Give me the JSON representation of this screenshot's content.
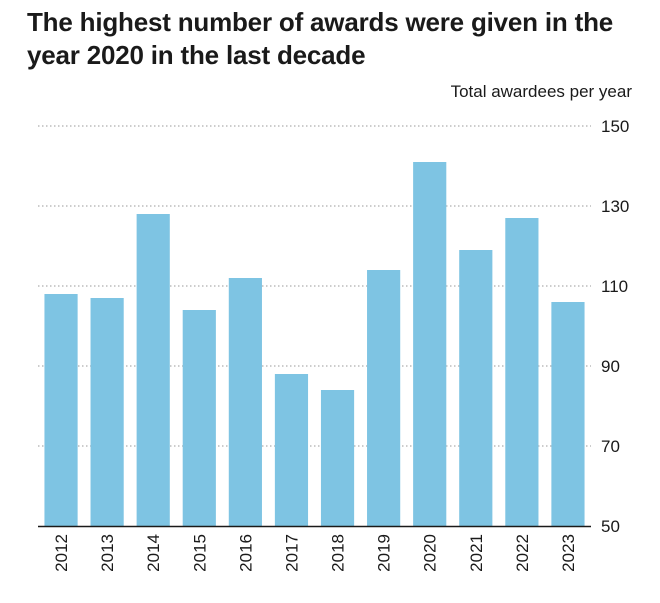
{
  "chart_data": {
    "type": "bar",
    "title": "The highest number of awards were given in the year 2020 in the last decade",
    "ylabel": "Total awardees per year",
    "xlabel": "",
    "categories": [
      "2012",
      "2013",
      "2014",
      "2015",
      "2016",
      "2017",
      "2018",
      "2019",
      "2020",
      "2021",
      "2022",
      "2023"
    ],
    "values": [
      108,
      107,
      128,
      104,
      112,
      88,
      84,
      114,
      141,
      119,
      127,
      106
    ],
    "ylim": [
      50,
      150
    ],
    "yticks": [
      50,
      70,
      90,
      110,
      130,
      150
    ],
    "grid": true,
    "y_axis_side": "right",
    "bar_color": "#7ec4e3",
    "grid_color": "#9a9a9a",
    "axis_color": "#1a1a1a"
  }
}
